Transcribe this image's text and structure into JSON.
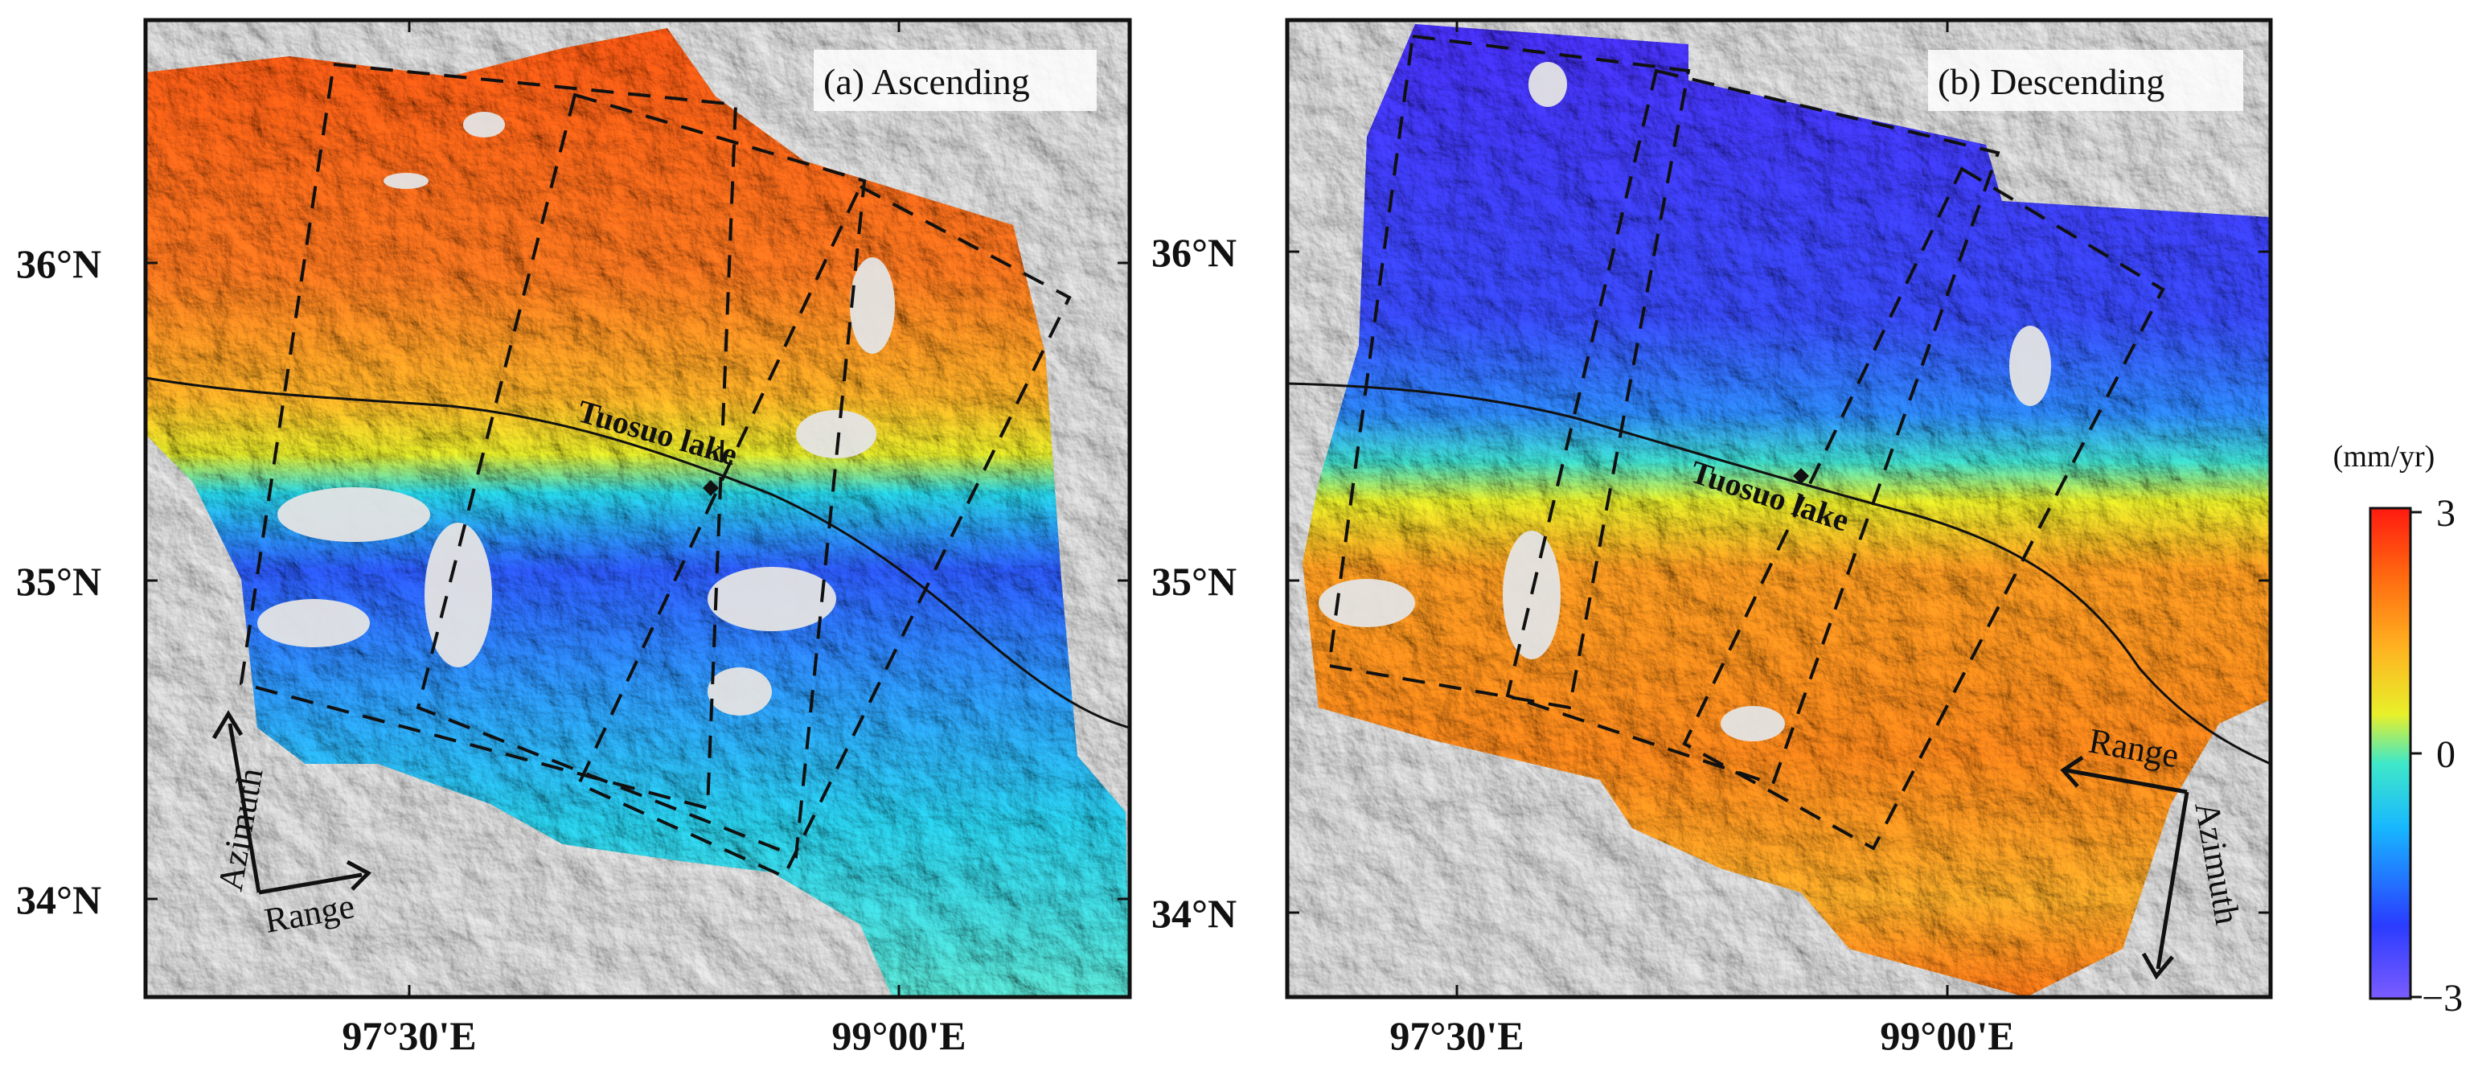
{
  "panels": [
    {
      "id": "a",
      "title": "(a) Ascending",
      "lake_label": "Tuosuo lake",
      "lat_labels": [
        "36°N",
        "35°N",
        "34°N"
      ],
      "lon_labels": [
        "97°30'E",
        "99°00'E"
      ],
      "azimuth_label": "Azimuth",
      "range_label": "Range"
    },
    {
      "id": "b",
      "title": "(b) Descending",
      "lake_label": "Tuosuo lake",
      "lat_labels": [
        "36°N",
        "35°N",
        "34°N"
      ],
      "lon_labels": [
        "97°30'E",
        "99°00'E"
      ],
      "azimuth_label": "Azimuth",
      "range_label": "Range"
    }
  ],
  "colorbar": {
    "unit": "(mm/yr)",
    "max_label": "3",
    "mid_label": "0",
    "min_label": "−3",
    "colors": [
      "#7b5cff",
      "#2a3cff",
      "#18b8ff",
      "#3fe8c8",
      "#e8f02a",
      "#ffb020",
      "#ff6a10",
      "#ff1a10"
    ]
  },
  "colors": {
    "frame": "#111111",
    "fault_line": "#111111",
    "hillshade": "#dcdcdc"
  }
}
